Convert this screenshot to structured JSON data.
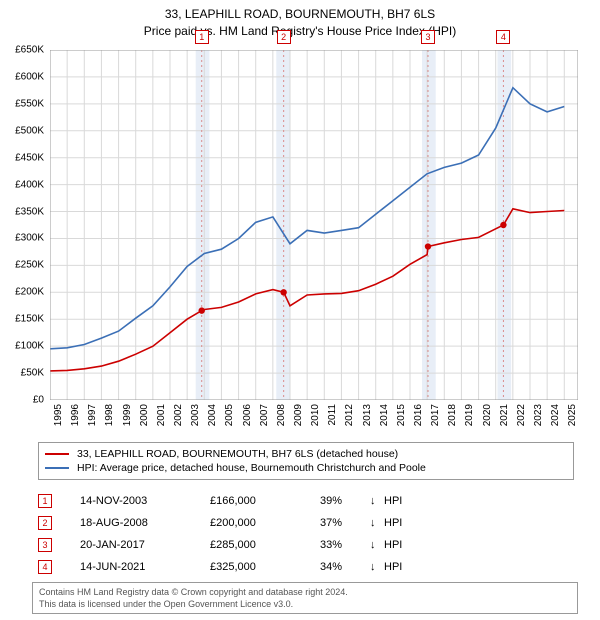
{
  "title": {
    "line1": "33, LEAPHILL ROAD, BOURNEMOUTH, BH7 6LS",
    "line2": "Price paid vs. HM Land Registry's House Price Index (HPI)"
  },
  "chart": {
    "type": "line",
    "background_color": "#ffffff",
    "grid_color": "#d9d9d9",
    "x_years": [
      1995,
      1996,
      1997,
      1998,
      1999,
      2000,
      2001,
      2002,
      2003,
      2004,
      2005,
      2006,
      2007,
      2008,
      2009,
      2010,
      2011,
      2012,
      2013,
      2014,
      2015,
      2016,
      2017,
      2018,
      2019,
      2020,
      2021,
      2022,
      2023,
      2024,
      2025
    ],
    "xlim": [
      1995,
      2025.8
    ],
    "ylim": [
      0,
      650000
    ],
    "ytick_step": 50000,
    "y_labels": [
      "£0",
      "£50K",
      "£100K",
      "£150K",
      "£200K",
      "£250K",
      "£300K",
      "£350K",
      "£400K",
      "£450K",
      "£500K",
      "£550K",
      "£600K",
      "£650K"
    ],
    "label_fontsize": 10,
    "line_width": 1.6,
    "series": [
      {
        "name": "property",
        "color": "#cc0000",
        "label": "33, LEAPHILL ROAD, BOURNEMOUTH, BH7 6LS (detached house)",
        "x": [
          1995,
          1996,
          1997,
          1998,
          1999,
          2000,
          2001,
          2002,
          2003,
          2003.85,
          2004,
          2005,
          2006,
          2007,
          2008,
          2008.63,
          2009,
          2010,
          2011,
          2012,
          2013,
          2014,
          2015,
          2016,
          2017,
          2017.05,
          2018,
          2019,
          2020,
          2021,
          2021.45,
          2022,
          2023,
          2024,
          2025
        ],
        "y": [
          54000,
          55000,
          58000,
          63000,
          72000,
          85000,
          100000,
          125000,
          150000,
          166000,
          168000,
          172000,
          182000,
          197000,
          205000,
          200000,
          175000,
          195000,
          197000,
          198000,
          203000,
          215000,
          230000,
          252000,
          270000,
          285000,
          292000,
          298000,
          302000,
          318000,
          325000,
          355000,
          348000,
          350000,
          352000
        ]
      },
      {
        "name": "hpi",
        "color": "#3b6fb6",
        "label": "HPI: Average price, detached house, Bournemouth Christchurch and Poole",
        "x": [
          1995,
          1996,
          1997,
          1998,
          1999,
          2000,
          2001,
          2002,
          2003,
          2004,
          2005,
          2006,
          2007,
          2008,
          2009,
          2010,
          2011,
          2012,
          2013,
          2014,
          2015,
          2016,
          2017,
          2018,
          2019,
          2020,
          2021,
          2022,
          2023,
          2024,
          2025
        ],
        "y": [
          95000,
          97000,
          103000,
          115000,
          128000,
          152000,
          175000,
          210000,
          248000,
          272000,
          280000,
          300000,
          330000,
          340000,
          290000,
          315000,
          310000,
          315000,
          320000,
          345000,
          370000,
          395000,
          420000,
          432000,
          440000,
          455000,
          505000,
          580000,
          550000,
          535000,
          545000
        ]
      }
    ],
    "markers": [
      {
        "n": "1",
        "x": 2003.85,
        "y": 166000,
        "band_start": 2003.5,
        "band_end": 2004.3
      },
      {
        "n": "2",
        "x": 2008.63,
        "y": 200000,
        "band_start": 2008.2,
        "band_end": 2009.0
      },
      {
        "n": "3",
        "x": 2017.05,
        "y": 285000,
        "band_start": 2016.7,
        "band_end": 2017.5
      },
      {
        "n": "4",
        "x": 2021.45,
        "y": 325000,
        "band_start": 2021.1,
        "band_end": 2021.9
      }
    ],
    "band_color": "#e8eef7",
    "marker_line_color": "#d98c8c",
    "marker_point_color": "#cc0000"
  },
  "sales": [
    {
      "n": "1",
      "date": "14-NOV-2003",
      "price": "£166,000",
      "pct": "39%",
      "arrow": "↓",
      "label": "HPI"
    },
    {
      "n": "2",
      "date": "18-AUG-2008",
      "price": "£200,000",
      "pct": "37%",
      "arrow": "↓",
      "label": "HPI"
    },
    {
      "n": "3",
      "date": "20-JAN-2017",
      "price": "£285,000",
      "pct": "33%",
      "arrow": "↓",
      "label": "HPI"
    },
    {
      "n": "4",
      "date": "14-JUN-2021",
      "price": "£325,000",
      "pct": "34%",
      "arrow": "↓",
      "label": "HPI"
    }
  ],
  "footer": {
    "line1": "Contains HM Land Registry data © Crown copyright and database right 2024.",
    "line2": "This data is licensed under the Open Government Licence v3.0."
  }
}
